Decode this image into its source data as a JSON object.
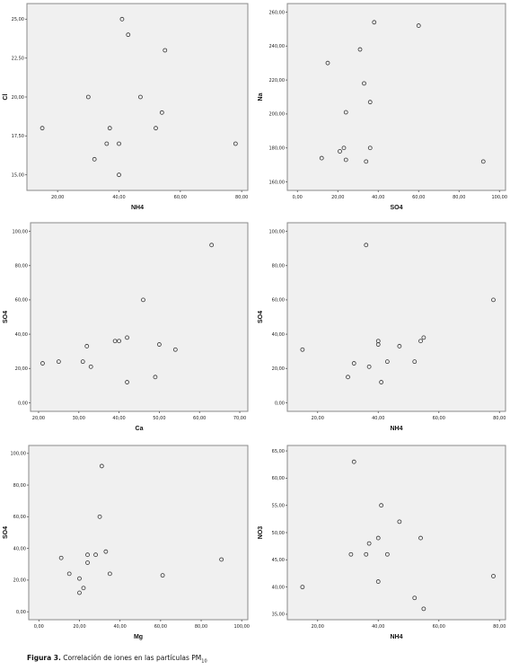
{
  "chart_data": [
    {
      "type": "scatter",
      "xlabel": "NH4",
      "ylabel": "Cl",
      "xlim": [
        10,
        82
      ],
      "ylim": [
        14,
        26
      ],
      "xticks": [
        20,
        40,
        60,
        80
      ],
      "xtick_labels": [
        "20,00",
        "40,00",
        "60,00",
        "80,00"
      ],
      "yticks": [
        15,
        17.5,
        20,
        22.5,
        25
      ],
      "ytick_labels": [
        "15,00",
        "17,50",
        "20,00",
        "22,50",
        "25,00"
      ],
      "grid": false,
      "points": [
        {
          "x": 15,
          "y": 18
        },
        {
          "x": 30,
          "y": 20
        },
        {
          "x": 32,
          "y": 16
        },
        {
          "x": 36,
          "y": 17
        },
        {
          "x": 37,
          "y": 18
        },
        {
          "x": 40,
          "y": 17
        },
        {
          "x": 40,
          "y": 15
        },
        {
          "x": 41,
          "y": 25
        },
        {
          "x": 43,
          "y": 24
        },
        {
          "x": 47,
          "y": 20
        },
        {
          "x": 52,
          "y": 18
        },
        {
          "x": 54,
          "y": 19
        },
        {
          "x": 55,
          "y": 23
        },
        {
          "x": 78,
          "y": 17
        }
      ]
    },
    {
      "type": "scatter",
      "xlabel": "SO4",
      "ylabel": "Na",
      "xlim": [
        -5,
        103
      ],
      "ylim": [
        155,
        265
      ],
      "xticks": [
        0,
        20,
        40,
        60,
        80,
        100
      ],
      "xtick_labels": [
        "0,00",
        "20,00",
        "40,00",
        "60,00",
        "80,00",
        "100,00"
      ],
      "yticks": [
        160,
        180,
        200,
        220,
        240,
        260
      ],
      "ytick_labels": [
        "160,00",
        "180,00",
        "200,00",
        "220,00",
        "240,00",
        "260,00"
      ],
      "grid": false,
      "points": [
        {
          "x": 12,
          "y": 174
        },
        {
          "x": 15,
          "y": 230
        },
        {
          "x": 21,
          "y": 178
        },
        {
          "x": 23,
          "y": 180
        },
        {
          "x": 24,
          "y": 173
        },
        {
          "x": 24,
          "y": 201
        },
        {
          "x": 31,
          "y": 238
        },
        {
          "x": 33,
          "y": 218
        },
        {
          "x": 34,
          "y": 172
        },
        {
          "x": 36,
          "y": 180
        },
        {
          "x": 36,
          "y": 207
        },
        {
          "x": 38,
          "y": 254
        },
        {
          "x": 60,
          "y": 252
        },
        {
          "x": 92,
          "y": 172
        }
      ]
    },
    {
      "type": "scatter",
      "xlabel": "Ca",
      "ylabel": "SO4",
      "xlim": [
        18,
        72
      ],
      "ylim": [
        -5,
        105
      ],
      "xticks": [
        20,
        30,
        40,
        50,
        60,
        70
      ],
      "xtick_labels": [
        "20,00",
        "30,00",
        "40,00",
        "50,00",
        "60,00",
        "70,00"
      ],
      "yticks": [
        0,
        20,
        40,
        60,
        80,
        100
      ],
      "ytick_labels": [
        "0,00",
        "20,00",
        "40,00",
        "60,00",
        "80,00",
        "100,00"
      ],
      "grid": false,
      "points": [
        {
          "x": 21,
          "y": 23
        },
        {
          "x": 25,
          "y": 24
        },
        {
          "x": 31,
          "y": 24
        },
        {
          "x": 32,
          "y": 33
        },
        {
          "x": 33,
          "y": 21
        },
        {
          "x": 39,
          "y": 36
        },
        {
          "x": 40,
          "y": 36
        },
        {
          "x": 42,
          "y": 38
        },
        {
          "x": 42,
          "y": 12
        },
        {
          "x": 46,
          "y": 60
        },
        {
          "x": 49,
          "y": 15
        },
        {
          "x": 50,
          "y": 34
        },
        {
          "x": 54,
          "y": 31
        },
        {
          "x": 63,
          "y": 92
        }
      ]
    },
    {
      "type": "scatter",
      "xlabel": "NH4",
      "ylabel": "SO4",
      "xlim": [
        10,
        82
      ],
      "ylim": [
        -5,
        105
      ],
      "xticks": [
        20,
        40,
        60,
        80
      ],
      "xtick_labels": [
        "20,00",
        "40,00",
        "60,00",
        "80,00"
      ],
      "yticks": [
        0,
        20,
        40,
        60,
        80,
        100
      ],
      "ytick_labels": [
        "0,00",
        "20,00",
        "40,00",
        "60,00",
        "80,00",
        "100,00"
      ],
      "grid": false,
      "points": [
        {
          "x": 15,
          "y": 31
        },
        {
          "x": 30,
          "y": 15
        },
        {
          "x": 32,
          "y": 23
        },
        {
          "x": 36,
          "y": 92
        },
        {
          "x": 37,
          "y": 21
        },
        {
          "x": 40,
          "y": 36
        },
        {
          "x": 40,
          "y": 34
        },
        {
          "x": 41,
          "y": 12
        },
        {
          "x": 43,
          "y": 24
        },
        {
          "x": 47,
          "y": 33
        },
        {
          "x": 52,
          "y": 24
        },
        {
          "x": 54,
          "y": 36
        },
        {
          "x": 55,
          "y": 38
        },
        {
          "x": 78,
          "y": 60
        }
      ]
    },
    {
      "type": "scatter",
      "xlabel": "Mg",
      "ylabel": "SO4",
      "xlim": [
        -5,
        103
      ],
      "ylim": [
        -5,
        105
      ],
      "xticks": [
        0,
        20,
        40,
        60,
        80,
        100
      ],
      "xtick_labels": [
        "0,00",
        "20,00",
        "40,00",
        "60,00",
        "80,00",
        "100,00"
      ],
      "yticks": [
        0,
        20,
        40,
        60,
        80,
        100
      ],
      "ytick_labels": [
        "0,00",
        "20,00",
        "40,00",
        "60,00",
        "80,00",
        "100,00"
      ],
      "grid": false,
      "points": [
        {
          "x": 11,
          "y": 34
        },
        {
          "x": 15,
          "y": 24
        },
        {
          "x": 20,
          "y": 21
        },
        {
          "x": 20,
          "y": 12
        },
        {
          "x": 22,
          "y": 15
        },
        {
          "x": 24,
          "y": 31
        },
        {
          "x": 24,
          "y": 36
        },
        {
          "x": 28,
          "y": 36
        },
        {
          "x": 30,
          "y": 60
        },
        {
          "x": 31,
          "y": 92
        },
        {
          "x": 33,
          "y": 38
        },
        {
          "x": 35,
          "y": 24
        },
        {
          "x": 61,
          "y": 23
        },
        {
          "x": 90,
          "y": 33
        }
      ]
    },
    {
      "type": "scatter",
      "xlabel": "NH4",
      "ylabel": "NO3",
      "xlim": [
        10,
        82
      ],
      "ylim": [
        34,
        66
      ],
      "xticks": [
        20,
        40,
        60,
        80
      ],
      "xtick_labels": [
        "20,00",
        "40,00",
        "60,00",
        "80,00"
      ],
      "yticks": [
        35,
        40,
        45,
        50,
        55,
        60,
        65
      ],
      "ytick_labels": [
        "35,00",
        "40,00",
        "45,00",
        "50,00",
        "55,00",
        "60,00",
        "65,00"
      ],
      "grid": false,
      "points": [
        {
          "x": 15,
          "y": 40
        },
        {
          "x": 31,
          "y": 46
        },
        {
          "x": 32,
          "y": 63
        },
        {
          "x": 36,
          "y": 46
        },
        {
          "x": 37,
          "y": 48
        },
        {
          "x": 40,
          "y": 49
        },
        {
          "x": 40,
          "y": 41
        },
        {
          "x": 41,
          "y": 55
        },
        {
          "x": 43,
          "y": 46
        },
        {
          "x": 47,
          "y": 52
        },
        {
          "x": 52,
          "y": 38
        },
        {
          "x": 54,
          "y": 49
        },
        {
          "x": 55,
          "y": 36
        },
        {
          "x": 78,
          "y": 42
        }
      ]
    }
  ],
  "caption": {
    "label": "Figura 3.",
    "text": "Correlación de iones en las partículas PM",
    "subscript": "10"
  }
}
